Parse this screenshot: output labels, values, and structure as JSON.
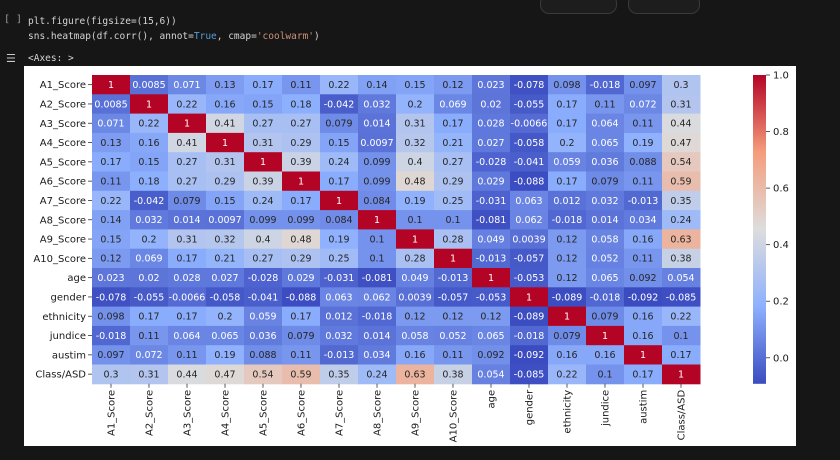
{
  "cell": {
    "gutter": "[ ]",
    "code_line1": "plt.figure(figsize=(15,6))",
    "code_line2_prefix": "sns.heatmap(df.corr(), annot=",
    "code_line2_kw": "True",
    "code_line2_mid": ", cmap=",
    "code_line2_str": "'coolwarm'",
    "code_line2_suffix": ")",
    "output_label": "<Axes: >"
  },
  "chart_data": {
    "type": "heatmap",
    "cmap": "coolwarm",
    "vmin": -0.092,
    "vmax": 1.0,
    "labels": [
      "A1_Score",
      "A2_Score",
      "A3_Score",
      "A4_Score",
      "A5_Score",
      "A6_Score",
      "A7_Score",
      "A8_Score",
      "A9_Score",
      "A10_Score",
      "age",
      "gender",
      "ethnicity",
      "jundice",
      "austim",
      "Class/ASD"
    ],
    "matrix": [
      [
        1,
        0.0085,
        0.071,
        0.13,
        0.17,
        0.11,
        0.22,
        0.14,
        0.15,
        0.12,
        0.023,
        -0.078,
        0.098,
        -0.018,
        0.097,
        0.3
      ],
      [
        0.0085,
        1,
        0.22,
        0.16,
        0.15,
        0.18,
        -0.042,
        0.032,
        0.2,
        0.069,
        0.02,
        -0.055,
        0.17,
        0.11,
        0.072,
        0.31
      ],
      [
        0.071,
        0.22,
        1,
        0.41,
        0.27,
        0.27,
        0.079,
        0.014,
        0.31,
        0.17,
        0.028,
        -0.0066,
        0.17,
        0.064,
        0.11,
        0.44
      ],
      [
        0.13,
        0.16,
        0.41,
        1,
        0.31,
        0.29,
        0.15,
        0.0097,
        0.32,
        0.21,
        0.027,
        -0.058,
        0.2,
        0.065,
        0.19,
        0.47
      ],
      [
        0.17,
        0.15,
        0.27,
        0.31,
        1,
        0.39,
        0.24,
        0.099,
        0.4,
        0.27,
        -0.028,
        -0.041,
        0.059,
        0.036,
        0.088,
        0.54
      ],
      [
        0.11,
        0.18,
        0.27,
        0.29,
        0.39,
        1,
        0.17,
        0.099,
        0.48,
        0.29,
        0.029,
        -0.088,
        0.17,
        0.079,
        0.11,
        0.59
      ],
      [
        0.22,
        -0.042,
        0.079,
        0.15,
        0.24,
        0.17,
        1,
        0.084,
        0.19,
        0.25,
        -0.031,
        0.063,
        0.012,
        0.032,
        -0.013,
        0.35
      ],
      [
        0.14,
        0.032,
        0.014,
        0.0097,
        0.099,
        0.099,
        0.084,
        1,
        0.1,
        0.1,
        -0.081,
        0.062,
        -0.018,
        0.014,
        0.034,
        0.24
      ],
      [
        0.15,
        0.2,
        0.31,
        0.32,
        0.4,
        0.48,
        0.19,
        0.1,
        1,
        0.28,
        0.049,
        0.0039,
        0.12,
        0.058,
        0.16,
        0.63
      ],
      [
        0.12,
        0.069,
        0.17,
        0.21,
        0.27,
        0.29,
        0.25,
        0.1,
        0.28,
        1,
        -0.013,
        -0.057,
        0.12,
        0.052,
        0.11,
        0.38
      ],
      [
        0.023,
        0.02,
        0.028,
        0.027,
        -0.028,
        0.029,
        -0.031,
        -0.081,
        0.049,
        -0.013,
        1,
        -0.053,
        0.12,
        0.065,
        0.092,
        0.054
      ],
      [
        -0.078,
        -0.055,
        -0.0066,
        -0.058,
        -0.041,
        -0.088,
        0.063,
        0.062,
        0.0039,
        -0.057,
        -0.053,
        1,
        -0.089,
        -0.018,
        -0.092,
        -0.085
      ],
      [
        0.098,
        0.17,
        0.17,
        0.2,
        0.059,
        0.17,
        0.012,
        -0.018,
        0.12,
        0.12,
        0.12,
        -0.089,
        1,
        0.079,
        0.16,
        0.22
      ],
      [
        -0.018,
        0.11,
        0.064,
        0.065,
        0.036,
        0.079,
        0.032,
        0.014,
        0.058,
        0.052,
        0.065,
        -0.018,
        0.079,
        1,
        0.16,
        0.1
      ],
      [
        0.097,
        0.072,
        0.11,
        0.19,
        0.088,
        0.11,
        -0.013,
        0.034,
        0.16,
        0.11,
        0.092,
        -0.092,
        0.16,
        0.16,
        1,
        0.17
      ],
      [
        0.3,
        0.31,
        0.44,
        0.47,
        0.54,
        0.59,
        0.35,
        0.24,
        0.63,
        0.38,
        0.054,
        -0.085,
        0.22,
        0.1,
        0.17,
        1
      ]
    ],
    "colorbar_ticks": [
      1.0,
      0.8,
      0.6,
      0.4,
      0.2,
      0.0
    ],
    "colorbar_tick_labels": [
      "1.0",
      "0.8",
      "0.6",
      "0.4",
      "0.2",
      "0.0"
    ]
  }
}
